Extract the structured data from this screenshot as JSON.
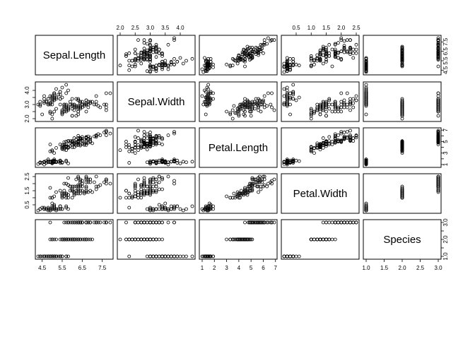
{
  "chart_data": {
    "type": "scatter",
    "kind": "pairs-scatterplot-matrix",
    "title": "",
    "variables": [
      "Sepal.Length",
      "Sepal.Width",
      "Petal.Length",
      "Petal.Width",
      "Species"
    ],
    "axis_ranges": {
      "Sepal.Length": [
        4.3,
        7.9
      ],
      "Sepal.Width": [
        2.0,
        4.4
      ],
      "Petal.Length": [
        1.0,
        6.9
      ],
      "Petal.Width": [
        0.1,
        2.5
      ],
      "Species": [
        1,
        3
      ]
    },
    "tick_labels": {
      "Sepal.Length": [
        "4.5",
        "5.5",
        "6.5",
        "7.5"
      ],
      "Sepal.Width": [
        "2.0",
        "2.5",
        "3.0",
        "3.5",
        "4.0"
      ],
      "Petal.Length": [
        "1",
        "2",
        "3",
        "4",
        "5",
        "6",
        "7"
      ],
      "Petal.Width": [
        "0.5",
        "1.0",
        "1.5",
        "2.0",
        "2.5"
      ],
      "Species": [
        "1.0",
        "1.5",
        "2.0",
        "2.5",
        "3.0"
      ]
    },
    "axes_visible_top": [
      "Sepal.Width",
      "Petal.Width"
    ],
    "axes_visible_bottom": [
      "Sepal.Length",
      "Petal.Length",
      "Species"
    ],
    "axes_visible_left": [
      "Sepal.Width",
      "Petal.Width"
    ],
    "axes_visible_right": [
      "Sepal.Length",
      "Petal.Length",
      "Species"
    ],
    "sparse_tick_labels": {
      "Sepal.Width_left": [
        "2.0",
        "3.0",
        "4.0"
      ],
      "Petal.Width_left": [
        "0.5",
        "1.5",
        "2.5"
      ],
      "Sepal.Length_right": [
        "4.5",
        "5.5",
        "6.5",
        "7.5"
      ],
      "Petal.Length_right": [
        "1",
        "3",
        "5",
        "7"
      ],
      "Species_right": [
        "1.0",
        "2.0",
        "3.0"
      ]
    },
    "grid": false,
    "legend": "none",
    "species_codes": [
      1,
      2,
      3
    ],
    "columns": [
      "sepal_length",
      "sepal_width",
      "petal_length",
      "petal_width",
      "species"
    ],
    "rows": [
      [
        5.1,
        3.5,
        1.4,
        0.2,
        1
      ],
      [
        4.9,
        3.0,
        1.4,
        0.2,
        1
      ],
      [
        4.7,
        3.2,
        1.3,
        0.2,
        1
      ],
      [
        4.6,
        3.1,
        1.5,
        0.2,
        1
      ],
      [
        5.0,
        3.6,
        1.4,
        0.2,
        1
      ],
      [
        5.4,
        3.9,
        1.7,
        0.4,
        1
      ],
      [
        4.6,
        3.4,
        1.4,
        0.3,
        1
      ],
      [
        5.0,
        3.4,
        1.5,
        0.2,
        1
      ],
      [
        4.4,
        2.9,
        1.4,
        0.2,
        1
      ],
      [
        4.9,
        3.1,
        1.5,
        0.1,
        1
      ],
      [
        5.4,
        3.7,
        1.5,
        0.2,
        1
      ],
      [
        4.8,
        3.4,
        1.6,
        0.2,
        1
      ],
      [
        4.8,
        3.0,
        1.4,
        0.1,
        1
      ],
      [
        4.3,
        3.0,
        1.1,
        0.1,
        1
      ],
      [
        5.8,
        4.0,
        1.2,
        0.2,
        1
      ],
      [
        5.7,
        4.4,
        1.5,
        0.4,
        1
      ],
      [
        5.4,
        3.9,
        1.3,
        0.4,
        1
      ],
      [
        5.1,
        3.5,
        1.4,
        0.3,
        1
      ],
      [
        5.7,
        3.8,
        1.7,
        0.3,
        1
      ],
      [
        5.1,
        3.8,
        1.5,
        0.3,
        1
      ],
      [
        5.4,
        3.4,
        1.7,
        0.2,
        1
      ],
      [
        5.1,
        3.7,
        1.5,
        0.4,
        1
      ],
      [
        4.6,
        3.6,
        1.0,
        0.2,
        1
      ],
      [
        5.1,
        3.3,
        1.7,
        0.5,
        1
      ],
      [
        4.8,
        3.4,
        1.9,
        0.2,
        1
      ],
      [
        5.0,
        3.0,
        1.6,
        0.2,
        1
      ],
      [
        5.0,
        3.4,
        1.6,
        0.4,
        1
      ],
      [
        5.2,
        3.5,
        1.5,
        0.2,
        1
      ],
      [
        5.2,
        3.4,
        1.4,
        0.2,
        1
      ],
      [
        4.7,
        3.2,
        1.6,
        0.2,
        1
      ],
      [
        4.8,
        3.1,
        1.6,
        0.2,
        1
      ],
      [
        5.4,
        3.4,
        1.5,
        0.4,
        1
      ],
      [
        5.2,
        4.1,
        1.5,
        0.1,
        1
      ],
      [
        5.5,
        4.2,
        1.4,
        0.2,
        1
      ],
      [
        4.9,
        3.1,
        1.5,
        0.2,
        1
      ],
      [
        5.0,
        3.2,
        1.2,
        0.2,
        1
      ],
      [
        5.5,
        3.5,
        1.3,
        0.2,
        1
      ],
      [
        4.9,
        3.6,
        1.4,
        0.1,
        1
      ],
      [
        4.4,
        3.0,
        1.3,
        0.2,
        1
      ],
      [
        5.1,
        3.4,
        1.5,
        0.2,
        1
      ],
      [
        5.0,
        3.5,
        1.3,
        0.3,
        1
      ],
      [
        4.5,
        2.3,
        1.3,
        0.3,
        1
      ],
      [
        4.4,
        3.2,
        1.3,
        0.2,
        1
      ],
      [
        5.0,
        3.5,
        1.6,
        0.6,
        1
      ],
      [
        5.1,
        3.8,
        1.9,
        0.4,
        1
      ],
      [
        4.8,
        3.0,
        1.4,
        0.3,
        1
      ],
      [
        5.1,
        3.8,
        1.6,
        0.2,
        1
      ],
      [
        4.6,
        3.2,
        1.4,
        0.2,
        1
      ],
      [
        5.3,
        3.7,
        1.5,
        0.2,
        1
      ],
      [
        5.0,
        3.3,
        1.4,
        0.2,
        1
      ],
      [
        7.0,
        3.2,
        4.7,
        1.4,
        2
      ],
      [
        6.4,
        3.2,
        4.5,
        1.5,
        2
      ],
      [
        6.9,
        3.1,
        4.9,
        1.5,
        2
      ],
      [
        5.5,
        2.3,
        4.0,
        1.3,
        2
      ],
      [
        6.5,
        2.8,
        4.6,
        1.5,
        2
      ],
      [
        5.7,
        2.8,
        4.5,
        1.3,
        2
      ],
      [
        6.3,
        3.3,
        4.7,
        1.6,
        2
      ],
      [
        4.9,
        2.4,
        3.3,
        1.0,
        2
      ],
      [
        6.6,
        2.9,
        4.6,
        1.3,
        2
      ],
      [
        5.2,
        2.7,
        3.9,
        1.4,
        2
      ],
      [
        5.0,
        2.0,
        3.5,
        1.0,
        2
      ],
      [
        5.9,
        3.0,
        4.2,
        1.5,
        2
      ],
      [
        6.0,
        2.2,
        4.0,
        1.0,
        2
      ],
      [
        6.1,
        2.9,
        4.7,
        1.4,
        2
      ],
      [
        5.6,
        2.9,
        3.6,
        1.3,
        2
      ],
      [
        6.7,
        3.1,
        4.4,
        1.4,
        2
      ],
      [
        5.6,
        3.0,
        4.5,
        1.5,
        2
      ],
      [
        5.8,
        2.7,
        4.1,
        1.0,
        2
      ],
      [
        6.2,
        2.2,
        4.5,
        1.5,
        2
      ],
      [
        5.6,
        2.5,
        3.9,
        1.1,
        2
      ],
      [
        5.9,
        3.2,
        4.8,
        1.8,
        2
      ],
      [
        6.1,
        2.8,
        4.0,
        1.3,
        2
      ],
      [
        6.3,
        2.5,
        4.9,
        1.5,
        2
      ],
      [
        6.1,
        2.8,
        4.7,
        1.2,
        2
      ],
      [
        6.4,
        2.9,
        4.3,
        1.3,
        2
      ],
      [
        6.6,
        3.0,
        4.4,
        1.4,
        2
      ],
      [
        6.8,
        2.8,
        4.8,
        1.4,
        2
      ],
      [
        6.7,
        3.0,
        5.0,
        1.7,
        2
      ],
      [
        6.0,
        2.9,
        4.5,
        1.5,
        2
      ],
      [
        5.7,
        2.6,
        3.5,
        1.0,
        2
      ],
      [
        5.5,
        2.4,
        3.8,
        1.1,
        2
      ],
      [
        5.5,
        2.4,
        3.7,
        1.0,
        2
      ],
      [
        5.8,
        2.7,
        3.9,
        1.2,
        2
      ],
      [
        6.0,
        2.7,
        5.1,
        1.6,
        2
      ],
      [
        5.4,
        3.0,
        4.5,
        1.5,
        2
      ],
      [
        6.0,
        3.4,
        4.5,
        1.6,
        2
      ],
      [
        6.7,
        3.1,
        4.7,
        1.5,
        2
      ],
      [
        6.3,
        2.3,
        4.4,
        1.3,
        2
      ],
      [
        5.6,
        3.0,
        4.1,
        1.3,
        2
      ],
      [
        5.5,
        2.5,
        4.0,
        1.3,
        2
      ],
      [
        5.5,
        2.6,
        4.4,
        1.2,
        2
      ],
      [
        6.1,
        3.0,
        4.6,
        1.4,
        2
      ],
      [
        5.8,
        2.6,
        4.0,
        1.2,
        2
      ],
      [
        5.0,
        2.3,
        3.3,
        1.0,
        2
      ],
      [
        5.6,
        2.7,
        4.2,
        1.3,
        2
      ],
      [
        5.7,
        3.0,
        4.2,
        1.2,
        2
      ],
      [
        5.7,
        2.9,
        4.2,
        1.3,
        2
      ],
      [
        6.2,
        2.9,
        4.3,
        1.3,
        2
      ],
      [
        5.1,
        2.5,
        3.0,
        1.1,
        2
      ],
      [
        5.7,
        2.8,
        4.1,
        1.3,
        2
      ],
      [
        6.3,
        3.3,
        6.0,
        2.5,
        3
      ],
      [
        5.8,
        2.7,
        5.1,
        1.9,
        3
      ],
      [
        7.1,
        3.0,
        5.9,
        2.1,
        3
      ],
      [
        6.3,
        2.9,
        5.6,
        1.8,
        3
      ],
      [
        6.5,
        3.0,
        5.8,
        2.2,
        3
      ],
      [
        7.6,
        3.0,
        6.6,
        2.1,
        3
      ],
      [
        4.9,
        2.5,
        4.5,
        1.7,
        3
      ],
      [
        7.3,
        2.9,
        6.3,
        1.8,
        3
      ],
      [
        6.7,
        2.5,
        5.8,
        1.8,
        3
      ],
      [
        7.2,
        3.6,
        6.1,
        2.5,
        3
      ],
      [
        6.5,
        3.2,
        5.1,
        2.0,
        3
      ],
      [
        6.4,
        2.7,
        5.3,
        1.9,
        3
      ],
      [
        6.8,
        3.0,
        5.5,
        2.1,
        3
      ],
      [
        5.7,
        2.5,
        5.0,
        2.0,
        3
      ],
      [
        5.8,
        2.8,
        5.1,
        2.4,
        3
      ],
      [
        6.4,
        3.2,
        5.3,
        2.3,
        3
      ],
      [
        6.5,
        3.0,
        5.5,
        1.8,
        3
      ],
      [
        7.7,
        3.8,
        6.7,
        2.2,
        3
      ],
      [
        7.7,
        2.6,
        6.9,
        2.3,
        3
      ],
      [
        6.0,
        2.2,
        5.0,
        1.5,
        3
      ],
      [
        6.9,
        3.2,
        5.7,
        2.3,
        3
      ],
      [
        5.6,
        2.8,
        4.9,
        2.0,
        3
      ],
      [
        7.7,
        2.8,
        6.7,
        2.0,
        3
      ],
      [
        6.3,
        2.7,
        4.9,
        1.8,
        3
      ],
      [
        6.7,
        3.3,
        5.7,
        2.1,
        3
      ],
      [
        7.2,
        3.2,
        6.0,
        1.8,
        3
      ],
      [
        6.2,
        2.8,
        4.8,
        1.8,
        3
      ],
      [
        6.1,
        3.0,
        4.9,
        1.8,
        3
      ],
      [
        6.4,
        2.8,
        5.6,
        2.1,
        3
      ],
      [
        7.2,
        3.0,
        5.8,
        1.6,
        3
      ],
      [
        7.4,
        2.8,
        6.1,
        1.9,
        3
      ],
      [
        7.9,
        3.8,
        6.4,
        2.0,
        3
      ],
      [
        6.4,
        2.8,
        5.6,
        2.2,
        3
      ],
      [
        6.3,
        2.8,
        5.1,
        1.5,
        3
      ],
      [
        6.1,
        2.6,
        5.6,
        1.4,
        3
      ],
      [
        7.7,
        3.0,
        6.1,
        2.3,
        3
      ],
      [
        6.3,
        3.4,
        5.6,
        2.4,
        3
      ],
      [
        6.4,
        3.1,
        5.5,
        1.8,
        3
      ],
      [
        6.0,
        3.0,
        4.8,
        1.8,
        3
      ],
      [
        6.9,
        3.1,
        5.4,
        2.1,
        3
      ],
      [
        6.7,
        3.1,
        5.6,
        2.4,
        3
      ],
      [
        6.9,
        3.1,
        5.1,
        2.3,
        3
      ],
      [
        5.8,
        2.7,
        5.1,
        1.9,
        3
      ],
      [
        6.8,
        3.2,
        5.9,
        2.3,
        3
      ],
      [
        6.7,
        3.3,
        5.7,
        2.5,
        3
      ],
      [
        6.7,
        3.0,
        5.2,
        2.3,
        3
      ],
      [
        6.3,
        2.5,
        5.0,
        1.9,
        3
      ],
      [
        6.5,
        3.0,
        5.2,
        2.0,
        3
      ],
      [
        6.2,
        3.4,
        5.4,
        2.3,
        3
      ],
      [
        5.9,
        3.0,
        5.1,
        1.8,
        3
      ]
    ]
  }
}
